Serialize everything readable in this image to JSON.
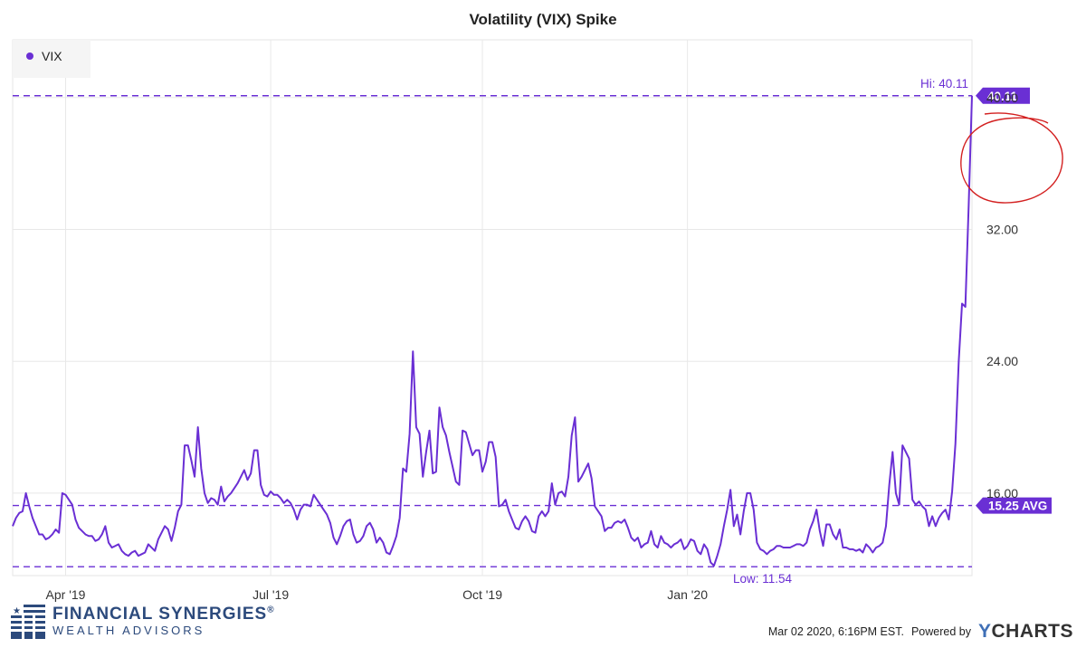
{
  "chart_data": {
    "type": "line",
    "title": "Volatility (VIX) Spike",
    "legend": {
      "label": "VIX",
      "placement": "top-left"
    },
    "series": [
      {
        "name": "VIX",
        "color": "#6a2fd4",
        "values": [
          14.0,
          14.5,
          14.8,
          14.9,
          16.0,
          15.2,
          14.5,
          14.0,
          13.5,
          13.5,
          13.2,
          13.3,
          13.5,
          13.8,
          13.6,
          16.0,
          15.9,
          15.6,
          15.3,
          14.4,
          13.9,
          13.7,
          13.5,
          13.4,
          13.4,
          13.1,
          13.2,
          13.5,
          14.0,
          13.0,
          12.7,
          12.8,
          12.9,
          12.5,
          12.3,
          12.2,
          12.4,
          12.5,
          12.2,
          12.3,
          12.4,
          12.9,
          12.7,
          12.5,
          13.2,
          13.6,
          14.0,
          13.8,
          13.1,
          13.9,
          14.9,
          15.3,
          18.9,
          18.9,
          18.0,
          17.0,
          20.0,
          17.5,
          16.0,
          15.4,
          15.7,
          15.6,
          15.3,
          16.4,
          15.5,
          15.8,
          16.0,
          16.3,
          16.6,
          17.0,
          17.4,
          16.8,
          17.2,
          18.6,
          18.6,
          16.5,
          15.9,
          15.8,
          16.1,
          15.9,
          15.9,
          15.7,
          15.4,
          15.6,
          15.4,
          15.0,
          14.4,
          15.0,
          15.3,
          15.3,
          15.2,
          15.9,
          15.6,
          15.3,
          15.0,
          14.7,
          14.2,
          13.3,
          12.9,
          13.4,
          14.0,
          14.3,
          14.4,
          13.5,
          13.0,
          13.1,
          13.4,
          14.0,
          14.2,
          13.8,
          13.0,
          13.3,
          13.0,
          12.4,
          12.3,
          12.8,
          13.4,
          14.5,
          17.5,
          17.3,
          19.6,
          24.6,
          20.0,
          19.6,
          17.0,
          18.5,
          19.8,
          17.2,
          17.3,
          21.2,
          20.0,
          19.5,
          18.5,
          17.6,
          16.7,
          16.5,
          19.8,
          19.7,
          19.0,
          18.3,
          18.6,
          18.6,
          17.3,
          17.9,
          19.1,
          19.1,
          18.2,
          15.2,
          15.3,
          15.6,
          14.9,
          14.4,
          13.9,
          13.8,
          14.3,
          14.6,
          14.3,
          13.7,
          13.6,
          14.6,
          14.9,
          14.6,
          14.9,
          16.6,
          15.3,
          16.0,
          16.1,
          15.8,
          17.0,
          19.5,
          20.6,
          16.7,
          17.0,
          17.4,
          17.8,
          16.9,
          15.2,
          14.9,
          14.6,
          13.7,
          13.9,
          13.9,
          14.2,
          14.3,
          14.2,
          14.4,
          13.9,
          13.3,
          13.1,
          13.3,
          12.7,
          12.9,
          13.0,
          13.7,
          12.9,
          12.7,
          13.4,
          13.0,
          12.9,
          12.7,
          12.9,
          13.0,
          13.2,
          12.6,
          12.8,
          13.2,
          13.1,
          12.5,
          12.3,
          12.9,
          12.6,
          11.8,
          11.6,
          12.2,
          12.9,
          14.0,
          15.0,
          16.2,
          14.0,
          14.7,
          13.5,
          14.9,
          16.0,
          16.0,
          15.0,
          13.0,
          12.6,
          12.5,
          12.3,
          12.5,
          12.6,
          12.8,
          12.8,
          12.7,
          12.7,
          12.7,
          12.8,
          12.9,
          12.9,
          12.8,
          13.0,
          13.8,
          14.3,
          15.0,
          13.7,
          12.8,
          14.1,
          14.1,
          13.5,
          13.2,
          13.8,
          12.7,
          12.7,
          12.6,
          12.6,
          12.5,
          12.6,
          12.4,
          12.9,
          12.7,
          12.4,
          12.7,
          12.8,
          13.0,
          14.0,
          16.5,
          18.5,
          16.0,
          15.3,
          18.9,
          18.5,
          18.1,
          15.6,
          15.3,
          15.5,
          15.2,
          15.0,
          14.0,
          14.6,
          14.0,
          14.5,
          14.8,
          15.0,
          14.4,
          16.1,
          19.0,
          24.0,
          27.5,
          27.3,
          33.4,
          40.11
        ],
        "stats": {
          "high": 40.11,
          "low": 11.54,
          "average": 15.25
        }
      }
    ],
    "x_tick_labels": [
      "Apr '19",
      "Jul '19",
      "Oct '19",
      "Jan '20"
    ],
    "x_tick_index": [
      16,
      78,
      142,
      204
    ],
    "y_tick_labels": [
      "16.00",
      "24.00",
      "32.00",
      "40.00"
    ],
    "y_ticks": [
      16,
      24,
      32,
      40
    ],
    "ylim": [
      11.0,
      43.5
    ],
    "reference_lines": [
      {
        "label": "Hi: 40.11",
        "value": 40.11
      },
      {
        "label": "Low: 11.54",
        "value": 11.54
      },
      {
        "label": "15.25 AVG",
        "value": 15.25
      }
    ],
    "end_value_label": "40.11",
    "grid": true,
    "annotation": "hand-drawn red circle around the high value"
  },
  "footer": {
    "logo_line1": "FINANCIAL SYNERGIES",
    "logo_registered": "®",
    "logo_line2": "WEALTH ADVISORS",
    "timestamp": "Mar 02 2020, 6:16PM EST.",
    "powered_by": "Powered by",
    "brand_y": "Y",
    "brand_rest": "CHARTS"
  },
  "colors": {
    "line": "#6a2fd4",
    "annotation": "#d32020",
    "logo": "#2c4a7c"
  }
}
